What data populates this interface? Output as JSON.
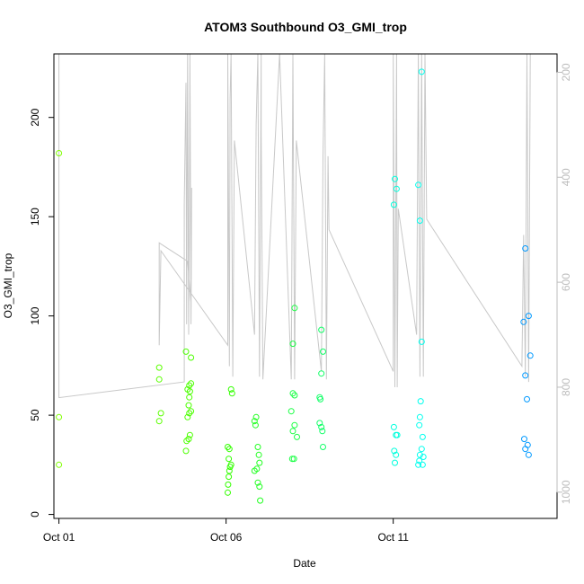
{
  "chart_data": {
    "type": "scatter",
    "title": "ATOM3 Southbound O3_GMI_trop",
    "xlabel": "Date",
    "ylabel": "O3_GMI_trop",
    "x_unit": "day of October 2016",
    "xlim": [
      0.85,
      15.9
    ],
    "ylim": [
      -2,
      232
    ],
    "x_ticks": [
      {
        "label": "Oct 01",
        "value": 1
      },
      {
        "label": "Oct 06",
        "value": 6
      },
      {
        "label": "Oct 11",
        "value": 11
      }
    ],
    "y_ticks": [
      0,
      50,
      100,
      150,
      200
    ],
    "right_axis": {
      "label": "",
      "reversed": true,
      "lim": [
        165,
        1050
      ],
      "ticks": [
        200,
        400,
        600,
        800,
        1000
      ],
      "color": "#bdbdbd"
    },
    "series": [
      {
        "marker": "open-circle",
        "color_gradient": [
          "#7fff00",
          "#00ffff",
          "#0080ff"
        ],
        "points": [
          {
            "x": 1.0,
            "y": 182,
            "c": "#80ff00"
          },
          {
            "x": 1.0,
            "y": 49,
            "c": "#80ff00"
          },
          {
            "x": 1.0,
            "y": 25,
            "c": "#80ff00"
          },
          {
            "x": 4.0,
            "y": 74,
            "c": "#5bff00"
          },
          {
            "x": 4.0,
            "y": 68,
            "c": "#5bff00"
          },
          {
            "x": 4.05,
            "y": 51,
            "c": "#5bff00"
          },
          {
            "x": 4.0,
            "y": 47,
            "c": "#5bff00"
          },
          {
            "x": 4.8,
            "y": 82,
            "c": "#4cff00"
          },
          {
            "x": 4.95,
            "y": 79,
            "c": "#4cff00"
          },
          {
            "x": 4.9,
            "y": 65,
            "c": "#4cff00"
          },
          {
            "x": 4.95,
            "y": 66,
            "c": "#4cff00"
          },
          {
            "x": 4.92,
            "y": 62,
            "c": "#4cff00"
          },
          {
            "x": 4.85,
            "y": 63,
            "c": "#4cff00"
          },
          {
            "x": 4.9,
            "y": 59,
            "c": "#4cff00"
          },
          {
            "x": 4.88,
            "y": 55,
            "c": "#4cff00"
          },
          {
            "x": 4.95,
            "y": 52,
            "c": "#4cff00"
          },
          {
            "x": 4.9,
            "y": 51,
            "c": "#4cff00"
          },
          {
            "x": 4.85,
            "y": 49,
            "c": "#4cff00"
          },
          {
            "x": 4.92,
            "y": 40,
            "c": "#4cff00"
          },
          {
            "x": 4.88,
            "y": 38,
            "c": "#4cff00"
          },
          {
            "x": 4.82,
            "y": 37,
            "c": "#4cff00"
          },
          {
            "x": 4.8,
            "y": 32,
            "c": "#4cff00"
          },
          {
            "x": 6.15,
            "y": 63,
            "c": "#33ff00"
          },
          {
            "x": 6.18,
            "y": 61,
            "c": "#33ff00"
          },
          {
            "x": 6.05,
            "y": 34,
            "c": "#33ff00"
          },
          {
            "x": 6.1,
            "y": 33,
            "c": "#33ff00"
          },
          {
            "x": 6.08,
            "y": 28,
            "c": "#33ff00"
          },
          {
            "x": 6.15,
            "y": 25,
            "c": "#33ff00"
          },
          {
            "x": 6.12,
            "y": 24,
            "c": "#33ff00"
          },
          {
            "x": 6.1,
            "y": 22,
            "c": "#33ff00"
          },
          {
            "x": 6.08,
            "y": 19,
            "c": "#33ff00"
          },
          {
            "x": 6.06,
            "y": 15,
            "c": "#33ff00"
          },
          {
            "x": 6.05,
            "y": 11,
            "c": "#33ff00"
          },
          {
            "x": 6.9,
            "y": 49,
            "c": "#22ff22"
          },
          {
            "x": 6.85,
            "y": 47,
            "c": "#22ff22"
          },
          {
            "x": 6.88,
            "y": 45,
            "c": "#22ff22"
          },
          {
            "x": 6.95,
            "y": 34,
            "c": "#22ff22"
          },
          {
            "x": 6.98,
            "y": 30,
            "c": "#22ff22"
          },
          {
            "x": 7.0,
            "y": 26,
            "c": "#22ff22"
          },
          {
            "x": 6.92,
            "y": 23,
            "c": "#22ff22"
          },
          {
            "x": 6.85,
            "y": 22,
            "c": "#22ff22"
          },
          {
            "x": 6.95,
            "y": 16,
            "c": "#22ff22"
          },
          {
            "x": 7.0,
            "y": 14,
            "c": "#22ff22"
          },
          {
            "x": 7.02,
            "y": 7,
            "c": "#22ff22"
          },
          {
            "x": 8.05,
            "y": 104,
            "c": "#1aff44"
          },
          {
            "x": 8.0,
            "y": 86,
            "c": "#1aff44"
          },
          {
            "x": 8.0,
            "y": 61,
            "c": "#1aff44"
          },
          {
            "x": 8.05,
            "y": 60,
            "c": "#1aff44"
          },
          {
            "x": 7.95,
            "y": 52,
            "c": "#1aff44"
          },
          {
            "x": 8.05,
            "y": 45,
            "c": "#1aff44"
          },
          {
            "x": 8.0,
            "y": 42,
            "c": "#1aff44"
          },
          {
            "x": 8.12,
            "y": 39,
            "c": "#1aff44"
          },
          {
            "x": 7.98,
            "y": 28,
            "c": "#1aff44"
          },
          {
            "x": 8.03,
            "y": 28,
            "c": "#1aff44"
          },
          {
            "x": 8.85,
            "y": 93,
            "c": "#10ff66"
          },
          {
            "x": 8.9,
            "y": 82,
            "c": "#10ff66"
          },
          {
            "x": 8.85,
            "y": 71,
            "c": "#10ff66"
          },
          {
            "x": 8.8,
            "y": 59,
            "c": "#10ff66"
          },
          {
            "x": 8.82,
            "y": 58,
            "c": "#10ff66"
          },
          {
            "x": 8.8,
            "y": 46,
            "c": "#10ff66"
          },
          {
            "x": 8.85,
            "y": 44,
            "c": "#10ff66"
          },
          {
            "x": 8.88,
            "y": 42,
            "c": "#10ff66"
          },
          {
            "x": 8.9,
            "y": 34,
            "c": "#10ff66"
          },
          {
            "x": 11.05,
            "y": 169,
            "c": "#00ffdd"
          },
          {
            "x": 11.1,
            "y": 164,
            "c": "#00ffdd"
          },
          {
            "x": 11.02,
            "y": 156,
            "c": "#00ffdd"
          },
          {
            "x": 11.02,
            "y": 44,
            "c": "#00ffdd"
          },
          {
            "x": 11.08,
            "y": 40,
            "c": "#00ffdd"
          },
          {
            "x": 11.12,
            "y": 40,
            "c": "#00ffdd"
          },
          {
            "x": 11.03,
            "y": 32,
            "c": "#00ffdd"
          },
          {
            "x": 11.08,
            "y": 30,
            "c": "#00ffdd"
          },
          {
            "x": 11.05,
            "y": 26,
            "c": "#00ffdd"
          },
          {
            "x": 11.85,
            "y": 223,
            "c": "#00ffee"
          },
          {
            "x": 11.75,
            "y": 166,
            "c": "#00ffee"
          },
          {
            "x": 11.8,
            "y": 148,
            "c": "#00ffee"
          },
          {
            "x": 11.85,
            "y": 87,
            "c": "#00ffee"
          },
          {
            "x": 11.82,
            "y": 57,
            "c": "#00ffee"
          },
          {
            "x": 11.8,
            "y": 49,
            "c": "#00ffee"
          },
          {
            "x": 11.78,
            "y": 45,
            "c": "#00ffee"
          },
          {
            "x": 11.88,
            "y": 39,
            "c": "#00ffee"
          },
          {
            "x": 11.85,
            "y": 33,
            "c": "#00ffee"
          },
          {
            "x": 11.8,
            "y": 30,
            "c": "#00ffee"
          },
          {
            "x": 11.9,
            "y": 29,
            "c": "#00ffee"
          },
          {
            "x": 11.78,
            "y": 27,
            "c": "#00ffee"
          },
          {
            "x": 11.75,
            "y": 25,
            "c": "#00ffee"
          },
          {
            "x": 11.88,
            "y": 25,
            "c": "#00ffee"
          },
          {
            "x": 14.95,
            "y": 134,
            "c": "#0099ff"
          },
          {
            "x": 15.05,
            "y": 100,
            "c": "#0099ff"
          },
          {
            "x": 14.9,
            "y": 97,
            "c": "#0099ff"
          },
          {
            "x": 15.1,
            "y": 80,
            "c": "#0099ff"
          },
          {
            "x": 14.95,
            "y": 70,
            "c": "#0099ff"
          },
          {
            "x": 15.0,
            "y": 58,
            "c": "#0099ff"
          },
          {
            "x": 14.92,
            "y": 38,
            "c": "#0099ff"
          },
          {
            "x": 15.02,
            "y": 35,
            "c": "#0099ff"
          },
          {
            "x": 14.95,
            "y": 33,
            "c": "#0099ff"
          },
          {
            "x": 15.05,
            "y": 30,
            "c": "#0099ff"
          }
        ]
      },
      {
        "type": "line",
        "axis": "right",
        "color": "#c8c8c8",
        "points": [
          [
            1.0,
            165
          ],
          [
            1.0,
            165
          ],
          [
            1.0,
            820
          ],
          [
            4.75,
            790
          ],
          [
            4.75,
            450
          ],
          [
            4.8,
            220
          ],
          [
            4.82,
            680
          ],
          [
            4.85,
            165
          ],
          [
            4.88,
            700
          ],
          [
            4.9,
            500
          ],
          [
            4.92,
            165
          ],
          [
            4.95,
            680
          ],
          [
            4.97,
            420
          ],
          [
            4.95,
            640
          ],
          [
            4.85,
            560
          ],
          [
            4.0,
            525
          ],
          [
            4.0,
            720
          ],
          [
            4.05,
            540
          ],
          [
            6.05,
            720
          ],
          [
            6.05,
            165
          ],
          [
            6.1,
            760
          ],
          [
            6.12,
            250
          ],
          [
            6.15,
            165
          ],
          [
            6.2,
            780
          ],
          [
            6.25,
            330
          ],
          [
            6.85,
            700
          ],
          [
            6.9,
            300
          ],
          [
            6.95,
            165
          ],
          [
            7.0,
            780
          ],
          [
            7.05,
            165
          ],
          [
            7.05,
            310
          ],
          [
            7.1,
            785
          ],
          [
            7.6,
            165
          ],
          [
            7.95,
            785
          ],
          [
            8.0,
            165
          ],
          [
            8.05,
            785
          ],
          [
            8.1,
            330
          ],
          [
            8.85,
            770
          ],
          [
            8.9,
            360
          ],
          [
            8.95,
            165
          ],
          [
            9.0,
            785
          ],
          [
            9.05,
            360
          ],
          [
            9.08,
            500
          ],
          [
            11.0,
            770
          ],
          [
            11.0,
            165
          ],
          [
            11.05,
            800
          ],
          [
            11.1,
            165
          ],
          [
            11.12,
            800
          ],
          [
            11.15,
            460
          ],
          [
            11.7,
            700
          ],
          [
            11.75,
            165
          ],
          [
            11.8,
            780
          ],
          [
            11.85,
            165
          ],
          [
            11.9,
            780
          ],
          [
            11.95,
            165
          ],
          [
            12.0,
            480
          ],
          [
            14.85,
            760
          ],
          [
            14.9,
            510
          ],
          [
            14.95,
            780
          ],
          [
            15.0,
            165
          ],
          [
            15.05,
            790
          ],
          [
            15.1,
            165
          ]
        ]
      }
    ]
  }
}
